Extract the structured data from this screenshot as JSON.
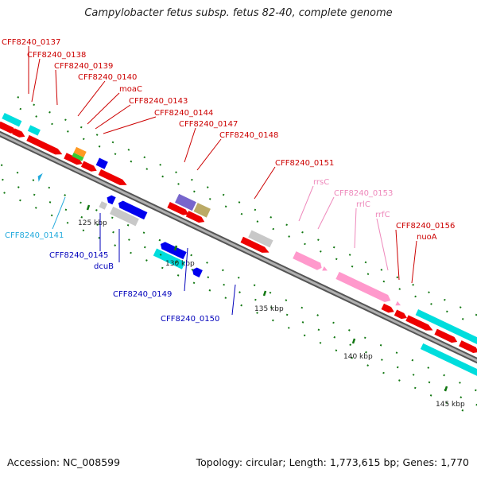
{
  "title": "Campylobacter fetus subsp. fetus 82-40, complete genome",
  "footer": {
    "accession": "Accession: NC_008599",
    "summary": "Topology: circular; Length: 1,773,615 bp; Genes: 1,770"
  },
  "colors": {
    "backbone": "#888888",
    "red_gene": "#ee0000",
    "blue_gene": "#0000ee",
    "cyan_gene": "#00dddd",
    "rna_gene": "#ff99cc",
    "grey_gene": "#c8c8c8",
    "green_tick": "#117711",
    "red_label": "#cc0000",
    "blue_label": "#0000bb",
    "cyan_label": "#22aadd",
    "pink_label": "#ee88bb"
  },
  "scale": {
    "unit": "kbp",
    "ticks": [
      {
        "label": "125 kbp"
      },
      {
        "label": "130 kbp"
      },
      {
        "label": "135 kbp"
      },
      {
        "label": "140 kbp"
      },
      {
        "label": "145 kbp"
      }
    ]
  },
  "labels": [
    {
      "text": "CFF8240_0137",
      "kind": "red"
    },
    {
      "text": "CFF8240_0138",
      "kind": "red"
    },
    {
      "text": "CFF8240_0139",
      "kind": "red"
    },
    {
      "text": "CFF8240_0140",
      "kind": "red"
    },
    {
      "text": "moaC",
      "kind": "red"
    },
    {
      "text": "CFF8240_0143",
      "kind": "red"
    },
    {
      "text": "CFF8240_0144",
      "kind": "red"
    },
    {
      "text": "CFF8240_0147",
      "kind": "red"
    },
    {
      "text": "CFF8240_0148",
      "kind": "red"
    },
    {
      "text": "CFF8240_0151",
      "kind": "red"
    },
    {
      "text": "rrsC",
      "kind": "pink"
    },
    {
      "text": "CFF8240_0153",
      "kind": "pink"
    },
    {
      "text": "rrlC",
      "kind": "pink"
    },
    {
      "text": "rrfC",
      "kind": "pink"
    },
    {
      "text": "CFF8240_0156",
      "kind": "red"
    },
    {
      "text": "nuoA",
      "kind": "red"
    },
    {
      "text": "CFF8240_0141",
      "kind": "cyan"
    },
    {
      "text": "CFF8240_0145",
      "kind": "blue"
    },
    {
      "text": "dcuB",
      "kind": "blue"
    },
    {
      "text": "CFF8240_0149",
      "kind": "blue"
    },
    {
      "text": "CFF8240_0150",
      "kind": "blue"
    }
  ]
}
